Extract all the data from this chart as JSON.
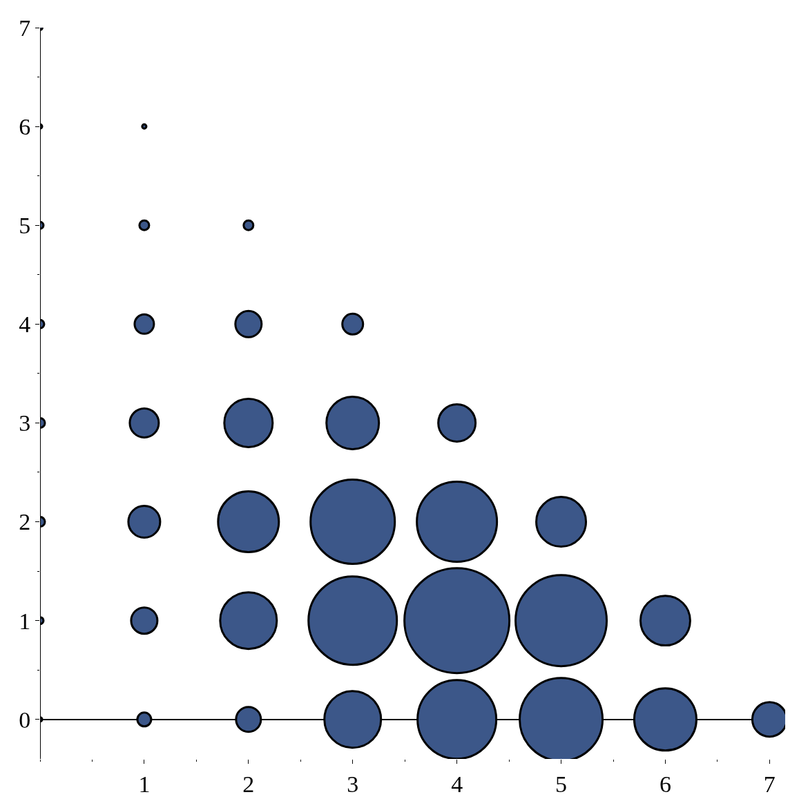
{
  "chart_data": {
    "type": "bubble",
    "x": [
      0,
      0,
      0,
      0,
      0,
      0,
      0,
      0,
      1,
      1,
      1,
      1,
      1,
      1,
      1,
      2,
      2,
      2,
      2,
      2,
      2,
      3,
      3,
      3,
      3,
      3,
      4,
      4,
      4,
      4,
      5,
      5,
      5,
      6,
      6,
      7
    ],
    "values": [
      0,
      1,
      2,
      3,
      4,
      5,
      6,
      7,
      0,
      1,
      2,
      3,
      4,
      5,
      6,
      0,
      1,
      2,
      3,
      4,
      5,
      0,
      1,
      2,
      3,
      4,
      0,
      1,
      2,
      3,
      0,
      1,
      2,
      0,
      1,
      0
    ],
    "sizes": [
      0.0016,
      0.0043,
      0.0085,
      0.0085,
      0.0062,
      0.0043,
      0.0016,
      0.002,
      0.0173,
      0.0625,
      0.0916,
      0.0763,
      0.0339,
      0.0085,
      0.0016,
      0.0561,
      0.291,
      0.335,
      0.212,
      0.0625,
      0.0085,
      0.291,
      0.709,
      0.644,
      0.25,
      0.039,
      0.5625,
      1,
      0.582,
      0.126,
      0.623,
      0.754,
      0.224,
      0.351,
      0.224,
      0.108
    ],
    "color": "#3c5789",
    "xlim": [
      0,
      7.15
    ],
    "ylim": [
      -0.4,
      7
    ],
    "xticks": [
      1,
      2,
      3,
      4,
      5,
      6,
      7
    ],
    "yticks": [
      0,
      1,
      2,
      3,
      4,
      5,
      6,
      7
    ],
    "grid": false
  }
}
